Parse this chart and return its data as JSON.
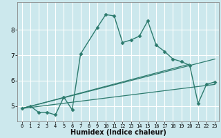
{
  "xlabel": "Humidex (Indice chaleur)",
  "background_color": "#cce8ed",
  "line_color": "#2d7b6e",
  "grid_color": "#ffffff",
  "xlim": [
    -0.5,
    23.5
  ],
  "ylim": [
    4.4,
    9.1
  ],
  "yticks": [
    5,
    6,
    7,
    8
  ],
  "xticks": [
    0,
    1,
    2,
    3,
    4,
    5,
    6,
    7,
    8,
    9,
    10,
    11,
    12,
    13,
    14,
    15,
    16,
    17,
    18,
    19,
    20,
    21,
    22,
    23
  ],
  "main_x": [
    0,
    1,
    2,
    3,
    4,
    5,
    6,
    7,
    9,
    10,
    11,
    12,
    13,
    14,
    15,
    16,
    17,
    18,
    19,
    20,
    21,
    22,
    23
  ],
  "main_y": [
    4.9,
    5.0,
    4.75,
    4.75,
    4.65,
    5.35,
    4.85,
    7.05,
    8.1,
    8.6,
    8.55,
    7.5,
    7.6,
    7.75,
    8.35,
    7.4,
    7.15,
    6.85,
    6.75,
    6.6,
    5.1,
    5.85,
    5.95
  ],
  "reg_line1_x": [
    0,
    23
  ],
  "reg_line1_y": [
    4.9,
    6.85
  ],
  "reg_line2_x": [
    0,
    23
  ],
  "reg_line2_y": [
    4.9,
    5.85
  ],
  "reg_line3_x": [
    0,
    20
  ],
  "reg_line3_y": [
    4.9,
    6.65
  ]
}
